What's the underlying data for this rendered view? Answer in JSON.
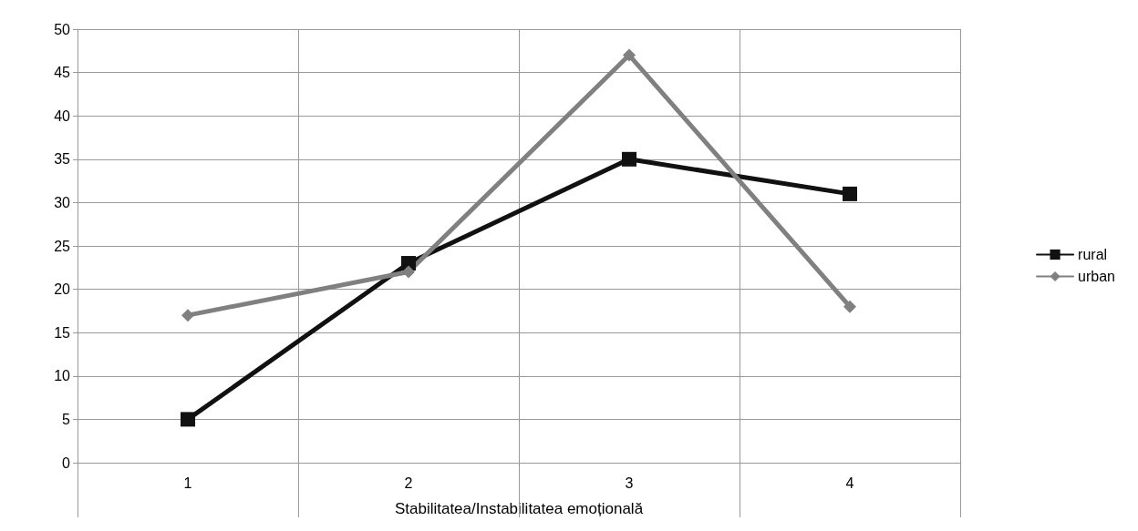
{
  "chart_data": {
    "type": "line",
    "xlabel": "Stabilitatea/Instabilitatea emoțională",
    "categories": [
      "1",
      "2",
      "3",
      "4"
    ],
    "series": [
      {
        "name": "rural",
        "color": "#111111",
        "marker": "square",
        "values": [
          5,
          23,
          35,
          31
        ]
      },
      {
        "name": "urban",
        "color": "#808080",
        "marker": "diamond",
        "values": [
          17,
          22,
          47,
          18
        ]
      }
    ],
    "ylim": [
      0,
      50
    ],
    "yticks": [
      0,
      5,
      10,
      15,
      20,
      25,
      30,
      35,
      40,
      45,
      50
    ],
    "grid": true,
    "legend": "right",
    "line_style": "solid"
  }
}
